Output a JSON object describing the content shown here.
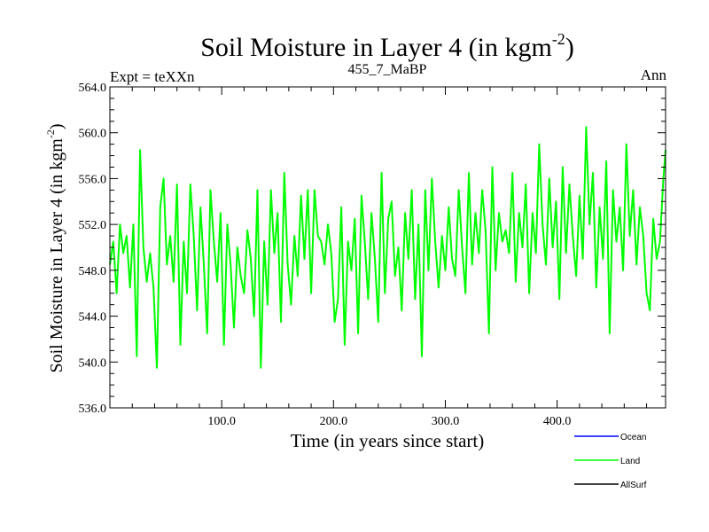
{
  "chart_data": {
    "type": "line",
    "title": "Soil Moisture in Layer 4 (in kgm",
    "title_sup": "-2",
    "title_close": ")",
    "subtitle_left": "Expt = teXXn",
    "subtitle_center": "455_7_MaBP",
    "subtitle_right": "Ann",
    "xlabel": "Time (in years since start)",
    "ylabel": "Soil Moisture in Layer 4 (in kgm",
    "ylabel_sup": "-2",
    "ylabel_close": ")",
    "xlim": [
      0,
      497
    ],
    "ylim": [
      536,
      564
    ],
    "xticks": [
      100,
      200,
      300,
      400
    ],
    "xtick_labels": [
      "100.0",
      "200.0",
      "300.0",
      "400.0"
    ],
    "yticks": [
      536,
      540,
      544,
      548,
      552,
      556,
      560,
      564
    ],
    "ytick_labels": [
      "536.0",
      "540.0",
      "544.0",
      "548.0",
      "552.0",
      "556.0",
      "560.0",
      "564.0"
    ],
    "legend": [
      {
        "name": "Ocean",
        "color": "#0000ff"
      },
      {
        "name": "Land",
        "color": "#00ff00"
      },
      {
        "name": "AllSurf",
        "color": "#000000"
      }
    ],
    "series": [
      {
        "name": "Land",
        "color": "#00ff00",
        "x": [
          0,
          3,
          6,
          9,
          12,
          15,
          18,
          21,
          24,
          27,
          30,
          33,
          36,
          39,
          42,
          45,
          48,
          51,
          54,
          57,
          60,
          63,
          66,
          69,
          72,
          75,
          78,
          81,
          84,
          87,
          90,
          93,
          96,
          99,
          102,
          105,
          108,
          111,
          114,
          117,
          120,
          123,
          126,
          129,
          132,
          135,
          138,
          141,
          144,
          147,
          150,
          153,
          156,
          159,
          162,
          165,
          168,
          171,
          174,
          177,
          180,
          183,
          186,
          189,
          192,
          195,
          198,
          201,
          204,
          207,
          210,
          213,
          216,
          219,
          222,
          225,
          228,
          231,
          234,
          237,
          240,
          243,
          246,
          249,
          252,
          255,
          258,
          261,
          264,
          267,
          270,
          273,
          276,
          279,
          282,
          285,
          288,
          291,
          294,
          297,
          300,
          303,
          306,
          309,
          312,
          315,
          318,
          321,
          324,
          327,
          330,
          333,
          336,
          339,
          342,
          345,
          348,
          351,
          354,
          357,
          360,
          363,
          366,
          369,
          372,
          375,
          378,
          381,
          384,
          387,
          390,
          393,
          396,
          399,
          402,
          405,
          408,
          411,
          414,
          417,
          420,
          423,
          426,
          429,
          432,
          435,
          438,
          441,
          444,
          447,
          450,
          453,
          456,
          459,
          462,
          465,
          468,
          471,
          474,
          477,
          480,
          483,
          486,
          489,
          492,
          495,
          497
        ],
        "values": [
          548.5,
          550.5,
          546.0,
          552.0,
          549.5,
          551.0,
          546.5,
          552.0,
          540.5,
          558.5,
          550.0,
          547.0,
          549.5,
          546.5,
          539.5,
          553.5,
          556.0,
          548.5,
          551.0,
          547.0,
          555.5,
          541.5,
          550.5,
          546.0,
          555.5,
          551.0,
          544.5,
          553.5,
          548.5,
          542.5,
          555.0,
          550.5,
          547.0,
          553.0,
          541.5,
          552.0,
          548.5,
          543.0,
          550.0,
          547.5,
          546.0,
          551.5,
          549.0,
          544.0,
          555.0,
          539.5,
          550.5,
          545.0,
          555.0,
          549.5,
          553.0,
          543.5,
          556.5,
          548.5,
          545.0,
          551.0,
          547.5,
          554.5,
          549.0,
          555.0,
          546.0,
          555.0,
          551.0,
          550.5,
          548.5,
          552.0,
          549.5,
          543.5,
          545.5,
          553.5,
          541.5,
          550.5,
          548.0,
          552.5,
          542.5,
          554.5,
          550.5,
          545.5,
          553.0,
          549.0,
          543.5,
          556.5,
          546.0,
          552.5,
          554.0,
          547.5,
          550.0,
          544.5,
          553.0,
          549.0,
          555.0,
          545.5,
          552.0,
          540.5,
          555.0,
          548.0,
          556.0,
          550.5,
          546.5,
          551.0,
          548.0,
          553.5,
          549.0,
          547.5,
          555.0,
          550.0,
          546.0,
          556.5,
          548.5,
          553.0,
          549.5,
          555.0,
          551.5,
          542.5,
          557.0,
          548.0,
          553.0,
          550.5,
          551.5,
          549.5,
          556.5,
          547.0,
          553.0,
          550.0,
          555.5,
          546.0,
          553.0,
          549.5,
          559.0,
          552.0,
          548.5,
          556.0,
          550.0,
          554.0,
          545.5,
          557.0,
          549.5,
          555.5,
          551.0,
          547.5,
          554.5,
          549.0,
          560.5,
          552.0,
          556.5,
          546.5,
          553.5,
          549.0,
          557.5,
          542.5,
          555.0,
          550.5,
          553.5,
          548.0,
          559.0,
          551.0,
          555.0,
          548.5,
          553.5,
          551.0,
          546.0,
          544.5,
          552.5,
          549.0,
          550.5,
          556.0,
          558.5
        ]
      }
    ]
  }
}
